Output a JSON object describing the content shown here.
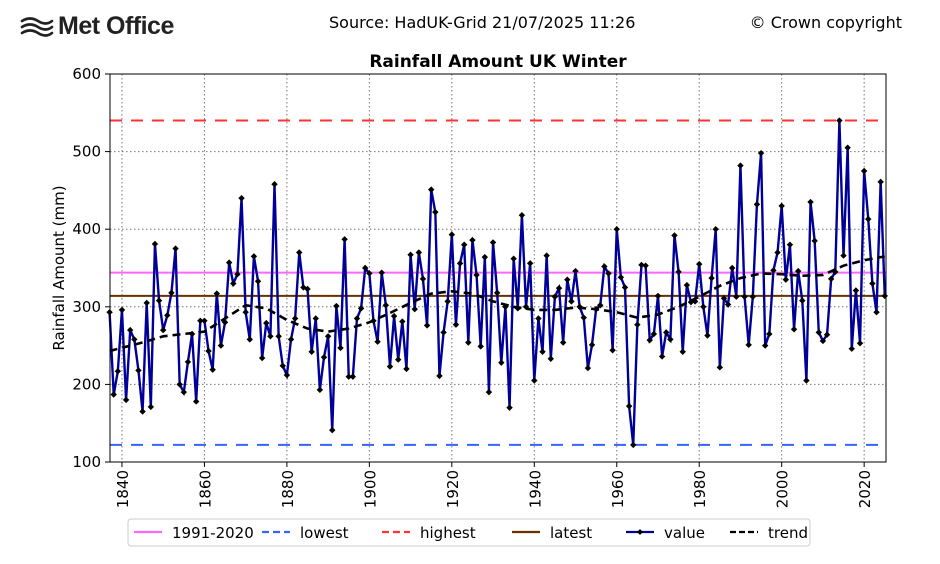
{
  "header": {
    "logo_text": "Met Office",
    "source": "Source: HadUK-Grid 21/07/2025 11:26",
    "copyright": "© Crown copyright"
  },
  "chart_data": {
    "type": "line",
    "title": "Rainfall Amount UK Winter",
    "xlabel": "",
    "ylabel": "Rainfall Amount (mm)",
    "xlim": [
      1837.1,
      2025.3
    ],
    "ylim": [
      100,
      600
    ],
    "grid": true,
    "legend_position": "bottom",
    "x_ticks": [
      1840,
      1860,
      1880,
      1900,
      1920,
      1940,
      1960,
      1980,
      2000,
      2020
    ],
    "y_ticks": [
      100,
      200,
      300,
      400,
      500,
      600
    ],
    "reference_lines": [
      {
        "name": "1991-2020",
        "value": 344,
        "color": "#ff66ff",
        "style": "solid"
      },
      {
        "name": "lowest",
        "value": 122,
        "color": "#3366ff",
        "style": "dashed"
      },
      {
        "name": "highest",
        "value": 540,
        "color": "#ff3333",
        "style": "dashed"
      },
      {
        "name": "latest",
        "value": 314,
        "color": "#663300",
        "style": "solid"
      }
    ],
    "series": [
      {
        "name": "value",
        "color": "#000099",
        "x_start": 1837,
        "values": [
          293,
          187,
          217,
          296,
          180,
          270,
          258,
          218,
          165,
          305,
          171,
          381,
          308,
          270,
          289,
          318,
          375,
          200,
          190,
          229,
          265,
          178,
          282,
          282,
          243,
          219,
          317,
          250,
          280,
          357,
          330,
          342,
          440,
          293,
          258,
          365,
          333,
          234,
          279,
          262,
          458,
          262,
          224,
          212,
          258,
          285,
          370,
          325,
          323,
          242,
          285,
          193,
          235,
          262,
          141,
          301,
          247,
          387,
          210,
          210,
          285,
          298,
          350,
          343,
          282,
          255,
          344,
          302,
          223,
          288,
          232,
          281,
          220,
          367,
          297,
          370,
          336,
          276,
          451,
          422,
          211,
          267,
          307,
          393,
          277,
          356,
          380,
          254,
          386,
          341,
          249,
          364,
          190,
          383,
          318,
          228,
          300,
          170,
          362,
          298,
          418,
          300,
          356,
          205,
          285,
          242,
          366,
          233,
          313,
          324,
          254,
          335,
          307,
          346,
          300,
          286,
          221,
          251,
          297,
          302,
          352,
          343,
          244,
          400,
          338,
          325,
          172,
          122,
          277,
          354,
          353,
          257,
          265,
          314,
          236,
          267,
          258,
          392,
          345,
          242,
          328,
          306,
          307,
          355,
          300,
          263,
          337,
          400,
          222,
          311,
          303,
          350,
          313,
          482,
          313,
          251,
          313,
          432,
          498,
          250,
          265,
          347,
          370,
          430,
          335,
          380,
          271,
          346,
          308,
          205,
          435,
          385,
          267,
          256,
          264,
          336,
          345,
          540,
          366,
          505,
          246,
          321,
          253,
          475,
          413,
          330,
          293,
          461,
          314
        ]
      },
      {
        "name": "trend",
        "color": "#000000",
        "points": [
          [
            1837,
            243
          ],
          [
            1845,
            254
          ],
          [
            1850,
            262
          ],
          [
            1855,
            265
          ],
          [
            1860,
            268
          ],
          [
            1865,
            285
          ],
          [
            1870,
            302
          ],
          [
            1875,
            298
          ],
          [
            1880,
            283
          ],
          [
            1885,
            272
          ],
          [
            1890,
            268
          ],
          [
            1895,
            272
          ],
          [
            1900,
            280
          ],
          [
            1905,
            292
          ],
          [
            1910,
            305
          ],
          [
            1915,
            317
          ],
          [
            1920,
            320
          ],
          [
            1925,
            317
          ],
          [
            1930,
            307
          ],
          [
            1935,
            300
          ],
          [
            1940,
            296
          ],
          [
            1945,
            296
          ],
          [
            1950,
            299
          ],
          [
            1955,
            297
          ],
          [
            1960,
            293
          ],
          [
            1965,
            286
          ],
          [
            1970,
            290
          ],
          [
            1975,
            300
          ],
          [
            1980,
            313
          ],
          [
            1985,
            327
          ],
          [
            1990,
            337
          ],
          [
            1995,
            343
          ],
          [
            2000,
            342
          ],
          [
            2005,
            340
          ],
          [
            2010,
            341
          ],
          [
            2015,
            353
          ],
          [
            2020,
            360
          ],
          [
            2025,
            365
          ]
        ]
      }
    ]
  }
}
